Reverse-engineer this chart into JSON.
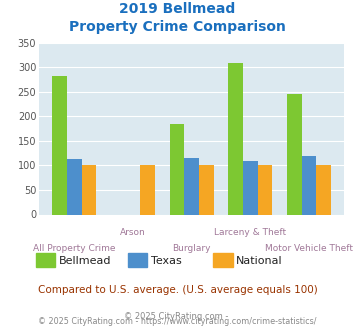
{
  "title_line1": "2019 Bellmead",
  "title_line2": "Property Crime Comparison",
  "categories": [
    "All Property Crime",
    "Arson",
    "Burglary",
    "Larceny & Theft",
    "Motor Vehicle Theft"
  ],
  "bellmead": [
    283,
    0,
    185,
    310,
    245
  ],
  "texas": [
    113,
    0,
    115,
    110,
    120
  ],
  "national": [
    100,
    100,
    100,
    100,
    100
  ],
  "colors": {
    "bellmead": "#7dc832",
    "texas": "#4d8fcc",
    "national": "#f5a623"
  },
  "ylim": [
    0,
    350
  ],
  "yticks": [
    0,
    50,
    100,
    150,
    200,
    250,
    300,
    350
  ],
  "note": "Compared to U.S. average. (U.S. average equals 100)",
  "footer_prefix": "© 2025 CityRating.com - ",
  "footer_link": "https://www.cityrating.com/crime-statistics/",
  "title_color": "#1a6fbe",
  "xlabel_color": "#a07898",
  "note_color": "#993300",
  "footer_color": "#888888",
  "footer_link_color": "#4488cc",
  "legend_text_color": "#222222",
  "bg_plot": "#dce9f0",
  "bg_fig": "#ffffff",
  "bar_width": 0.25
}
